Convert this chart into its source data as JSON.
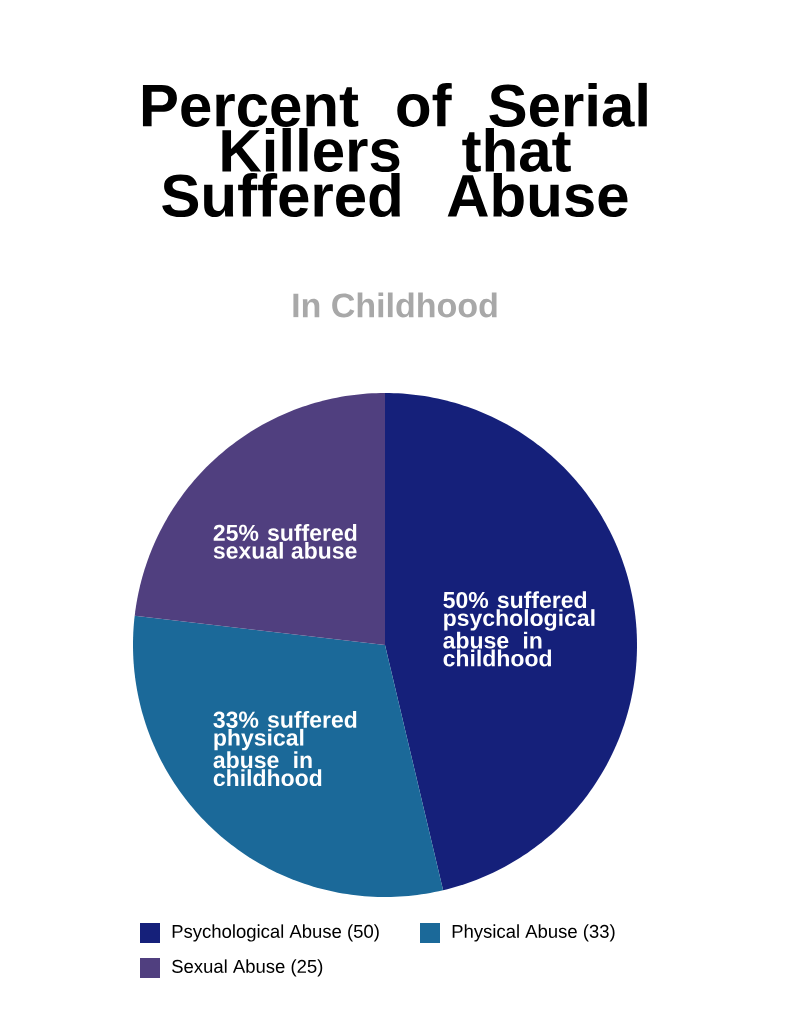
{
  "chart_data": {
    "type": "pie",
    "title": "Percent of Serial Killers that Suffered Abuse",
    "subtitle": "In Childhood",
    "categories": [
      "Psychological Abuse (50)",
      "Physical Abuse (33)",
      "Sexual Abuse (25)"
    ],
    "values": [
      50,
      33,
      25
    ],
    "colors": [
      "#15207a",
      "#1b6999",
      "#503f7f"
    ],
    "annotations": [
      "50% suffered psychological abuse in childhood",
      "33% suffered physical abuse in childhood",
      "25% suffered sexual abuse"
    ],
    "legend": "bottom"
  }
}
